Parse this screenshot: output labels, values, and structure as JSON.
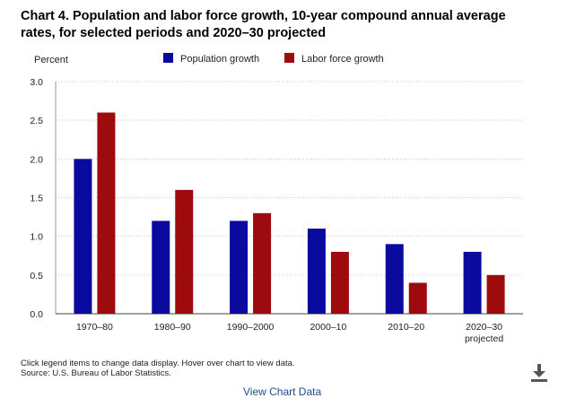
{
  "title": "Chart 4. Population and labor force growth, 10-year compound annual average rates, for selected periods and 2020–30 projected",
  "notes": {
    "line1": "Click legend items to change data display. Hover over chart to view data.",
    "line2": "Source: U.S. Bureau of Labor Statistics."
  },
  "view_link": "View Chart Data",
  "icons": {
    "download": "download-icon"
  },
  "colors": {
    "population": "#0b0a9e",
    "labor": "#9e0b0f",
    "grid": "#c8c8c8"
  },
  "chart_data": {
    "type": "bar",
    "categories": [
      "1970–80",
      "1980–90",
      "1990–2000",
      "2000–10",
      "2010–20",
      "2020–30\nprojected"
    ],
    "series": [
      {
        "name": "Population growth",
        "values": [
          2.0,
          1.2,
          1.2,
          1.1,
          0.9,
          0.8
        ]
      },
      {
        "name": "Labor force growth",
        "values": [
          2.6,
          1.6,
          1.3,
          0.8,
          0.4,
          0.5
        ]
      }
    ],
    "ylabel": "Percent",
    "xlabel": "",
    "ylim": [
      0,
      3.0
    ],
    "yticks": [
      "0.0",
      "0.5",
      "1.0",
      "1.5",
      "2.0",
      "2.5",
      "3.0"
    ],
    "grid": true,
    "legend": "top-center"
  }
}
